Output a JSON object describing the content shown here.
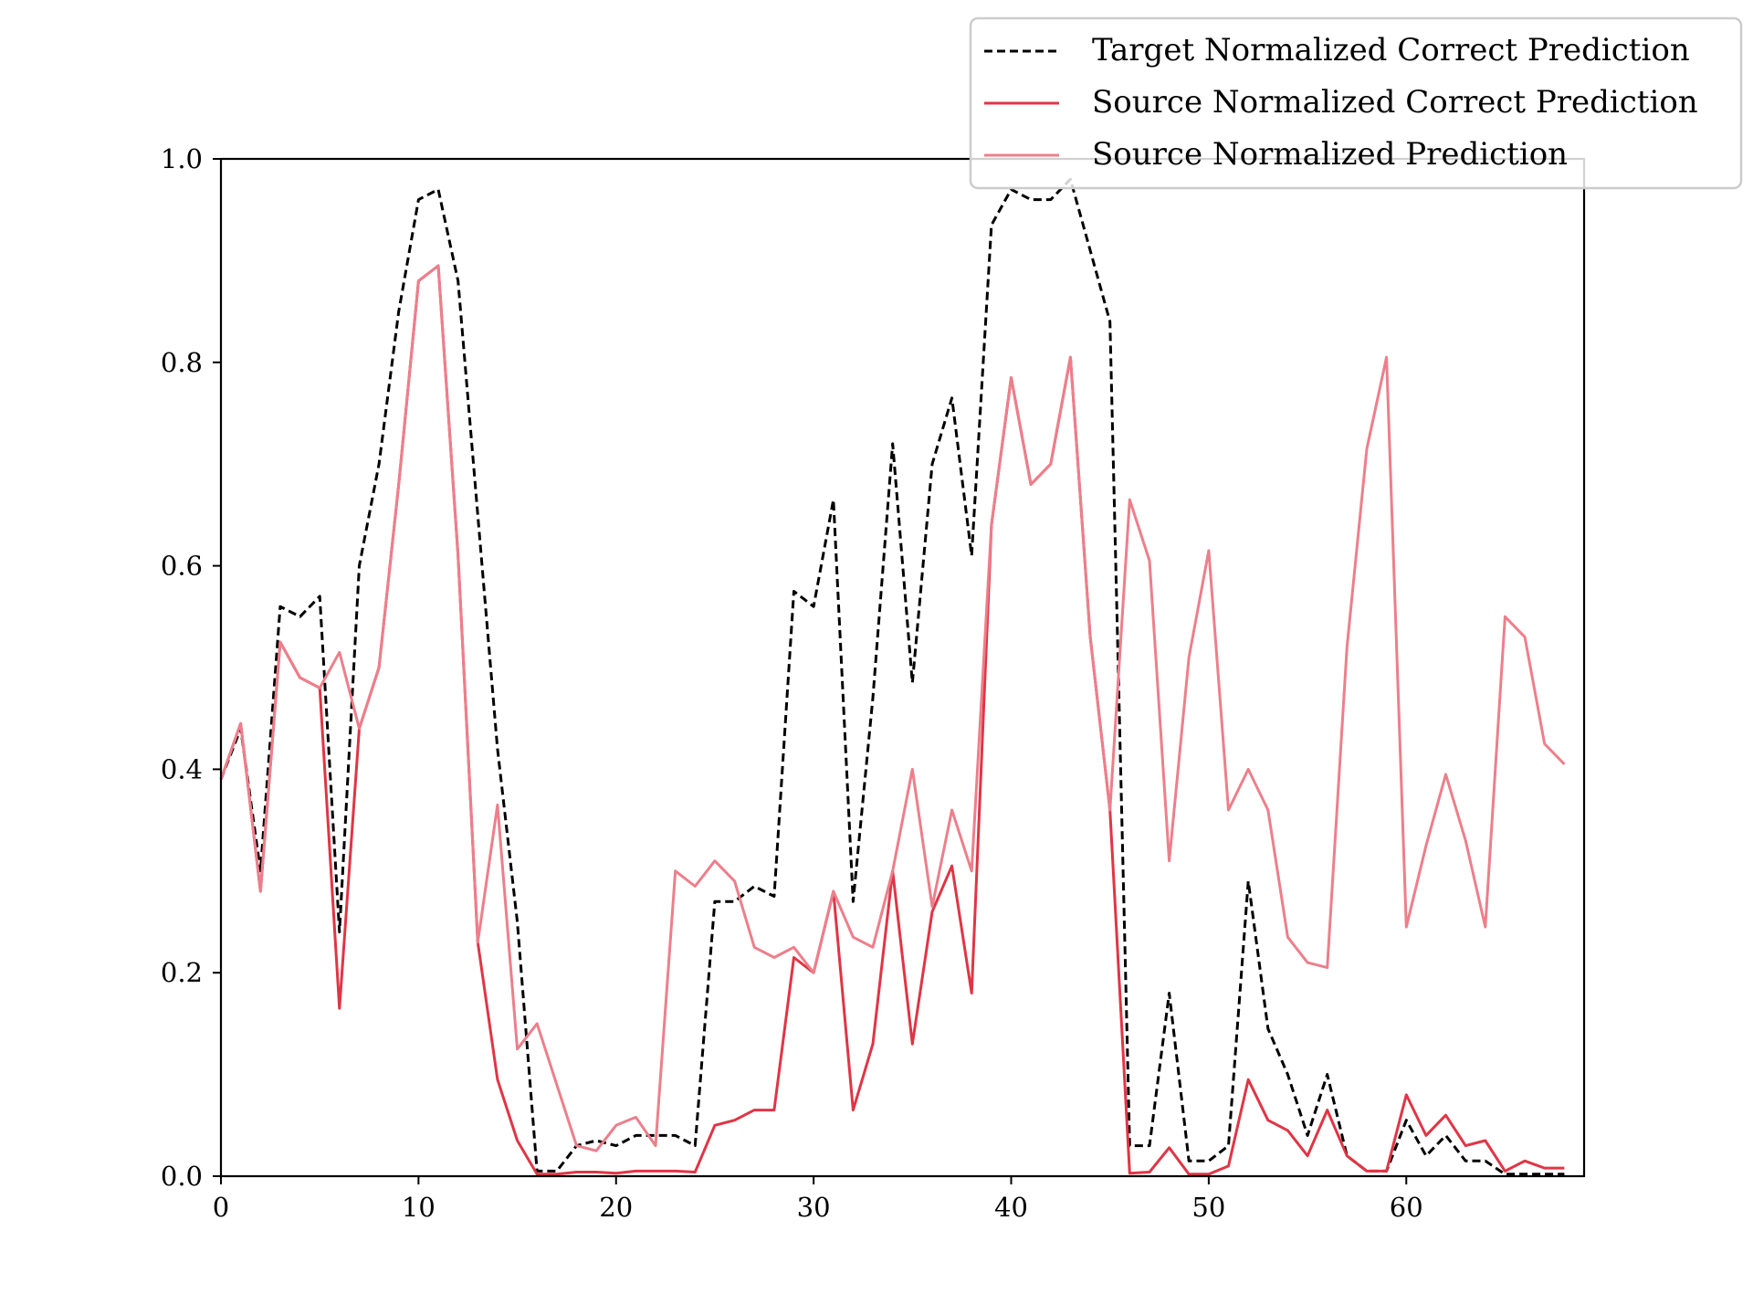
{
  "chart_data": {
    "type": "line",
    "title": "",
    "xlabel": "",
    "ylabel": "",
    "xlim": [
      0,
      69
    ],
    "ylim": [
      0,
      1
    ],
    "x_ticks": [
      0,
      10,
      20,
      30,
      40,
      50,
      60
    ],
    "y_ticks": [
      0.0,
      0.2,
      0.4,
      0.6,
      0.8,
      1.0
    ],
    "x_tick_labels": [
      "0",
      "10",
      "20",
      "30",
      "40",
      "50",
      "60"
    ],
    "y_tick_labels": [
      "0.0",
      "0.2",
      "0.4",
      "0.6",
      "0.8",
      "1.0"
    ],
    "grid": false,
    "legend_position": "top-right",
    "x": [
      0,
      1,
      2,
      3,
      4,
      5,
      6,
      7,
      8,
      9,
      10,
      11,
      12,
      13,
      14,
      15,
      16,
      17,
      18,
      19,
      20,
      21,
      22,
      23,
      24,
      25,
      26,
      27,
      28,
      29,
      30,
      31,
      32,
      33,
      34,
      35,
      36,
      37,
      38,
      39,
      40,
      41,
      42,
      43,
      44,
      45,
      46,
      47,
      48,
      49,
      50,
      51,
      52,
      53,
      54,
      55,
      56,
      57,
      58,
      59,
      60,
      61,
      62,
      63,
      64,
      65,
      66,
      67,
      68
    ],
    "series": [
      {
        "name": "Target Normalized Correct Prediction",
        "color": "#000000",
        "style": "dashed",
        "values": [
          0.39,
          0.44,
          0.3,
          0.56,
          0.55,
          0.57,
          0.24,
          0.6,
          0.7,
          0.85,
          0.96,
          0.97,
          0.88,
          0.65,
          0.42,
          0.25,
          0.005,
          0.005,
          0.03,
          0.035,
          0.03,
          0.04,
          0.04,
          0.04,
          0.03,
          0.27,
          0.27,
          0.285,
          0.275,
          0.575,
          0.56,
          0.665,
          0.27,
          0.47,
          0.72,
          0.485,
          0.7,
          0.765,
          0.61,
          0.935,
          0.97,
          0.96,
          0.96,
          0.98,
          0.91,
          0.84,
          0.03,
          0.03,
          0.18,
          0.015,
          0.015,
          0.03,
          0.29,
          0.145,
          0.1,
          0.04,
          0.1,
          0.02,
          0.005,
          0.005,
          0.055,
          0.02,
          0.04,
          0.015,
          0.015,
          0.002,
          0.002,
          0.002,
          0.002
        ]
      },
      {
        "name": "Source Normalized Correct Prediction",
        "color": "#e03545",
        "style": "solid",
        "values": [
          0.39,
          0.445,
          0.28,
          0.525,
          0.49,
          0.48,
          0.165,
          0.44,
          0.5,
          0.68,
          0.88,
          0.895,
          0.61,
          0.23,
          0.095,
          0.035,
          0.002,
          0.002,
          0.004,
          0.004,
          0.003,
          0.005,
          0.005,
          0.005,
          0.004,
          0.05,
          0.055,
          0.065,
          0.065,
          0.215,
          0.2,
          0.28,
          0.065,
          0.13,
          0.3,
          0.13,
          0.26,
          0.305,
          0.18,
          0.64,
          0.785,
          0.68,
          0.7,
          0.805,
          0.53,
          0.36,
          0.003,
          0.004,
          0.028,
          0.002,
          0.002,
          0.01,
          0.095,
          0.055,
          0.045,
          0.02,
          0.065,
          0.02,
          0.005,
          0.005,
          0.08,
          0.04,
          0.06,
          0.03,
          0.035,
          0.005,
          0.015,
          0.008,
          0.008
        ]
      },
      {
        "name": "Source Normalized Prediction",
        "color": "#ec7f8b",
        "style": "solid",
        "values": [
          0.39,
          0.445,
          0.28,
          0.525,
          0.49,
          0.48,
          0.515,
          0.44,
          0.5,
          0.68,
          0.88,
          0.895,
          0.61,
          0.23,
          0.365,
          0.125,
          0.15,
          0.09,
          0.03,
          0.025,
          0.05,
          0.058,
          0.03,
          0.3,
          0.285,
          0.31,
          0.29,
          0.225,
          0.215,
          0.225,
          0.2,
          0.28,
          0.235,
          0.225,
          0.3,
          0.4,
          0.265,
          0.36,
          0.3,
          0.64,
          0.785,
          0.68,
          0.7,
          0.805,
          0.53,
          0.36,
          0.665,
          0.605,
          0.31,
          0.51,
          0.615,
          0.36,
          0.4,
          0.36,
          0.235,
          0.21,
          0.205,
          0.52,
          0.715,
          0.805,
          0.245,
          0.325,
          0.395,
          0.33,
          0.245,
          0.55,
          0.53,
          0.425,
          0.405
        ]
      }
    ]
  }
}
